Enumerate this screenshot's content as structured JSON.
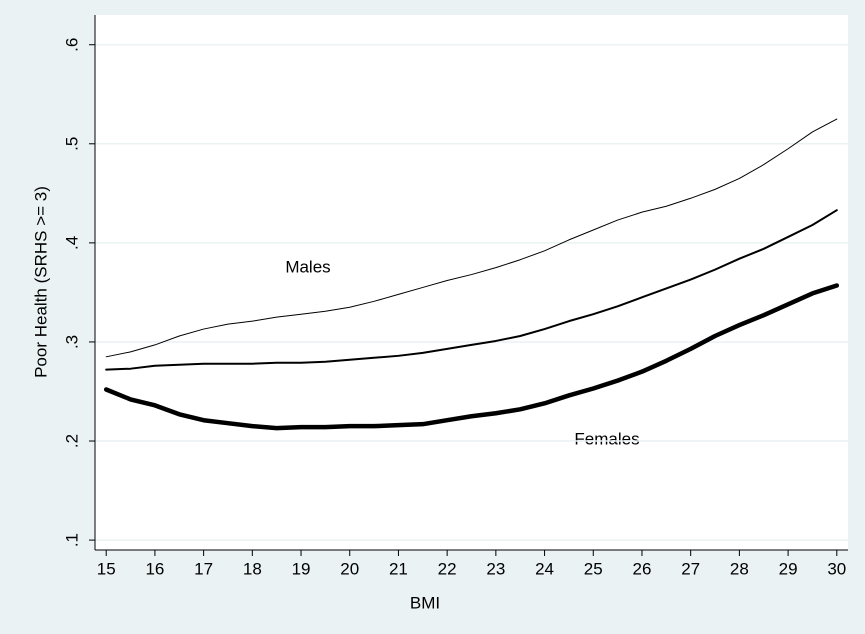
{
  "chart_data": {
    "type": "line",
    "x_label": "BMI",
    "y_label": "Poor Health (SRHS >= 3)",
    "annotations": [
      "Males",
      "Females"
    ],
    "x": [
      15,
      15.5,
      16,
      16.5,
      17,
      17.5,
      18,
      18.5,
      19,
      19.5,
      20,
      20.5,
      21,
      21.5,
      22,
      22.5,
      23,
      23.5,
      24,
      24.5,
      25,
      25.5,
      26,
      26.5,
      27,
      27.5,
      28,
      28.5,
      29,
      29.5,
      30
    ],
    "series": [
      {
        "color": "#000000",
        "width": 1,
        "values": [
          0.285,
          0.29,
          0.297,
          0.306,
          0.313,
          0.318,
          0.321,
          0.325,
          0.328,
          0.331,
          0.335,
          0.341,
          0.348,
          0.355,
          0.362,
          0.368,
          0.375,
          0.383,
          0.392,
          0.403,
          0.413,
          0.423,
          0.431,
          0.437,
          0.445,
          0.454,
          0.465,
          0.479,
          0.495,
          0.512,
          0.525
        ]
      },
      {
        "color": "#000000",
        "width": 2,
        "values": [
          0.272,
          0.273,
          0.276,
          0.277,
          0.278,
          0.278,
          0.278,
          0.279,
          0.279,
          0.28,
          0.282,
          0.284,
          0.286,
          0.289,
          0.293,
          0.297,
          0.301,
          0.306,
          0.313,
          0.321,
          0.328,
          0.336,
          0.345,
          0.354,
          0.363,
          0.373,
          0.384,
          0.394,
          0.406,
          0.418,
          0.433
        ]
      },
      {
        "color": "#000000",
        "width": 4.5,
        "values": [
          0.252,
          0.242,
          0.236,
          0.227,
          0.221,
          0.218,
          0.215,
          0.213,
          0.214,
          0.214,
          0.215,
          0.215,
          0.216,
          0.217,
          0.221,
          0.225,
          0.228,
          0.232,
          0.238,
          0.246,
          0.253,
          0.261,
          0.27,
          0.281,
          0.293,
          0.306,
          0.317,
          0.327,
          0.338,
          0.349,
          0.357
        ]
      }
    ],
    "xlim": [
      14.77,
      30.23
    ],
    "ylim": [
      0.09,
      0.63
    ],
    "xticks": [
      15,
      16,
      17,
      18,
      19,
      20,
      21,
      22,
      23,
      24,
      25,
      26,
      27,
      28,
      29,
      30
    ],
    "yticks": [
      {
        "value": 0.1,
        "label": ".1"
      },
      {
        "value": 0.2,
        "label": ".2"
      },
      {
        "value": 0.3,
        "label": ".3"
      },
      {
        "value": 0.4,
        "label": ".4"
      },
      {
        "value": 0.5,
        "label": ".5"
      },
      {
        "value": 0.6,
        "label": ".6"
      }
    ],
    "grid": true
  }
}
